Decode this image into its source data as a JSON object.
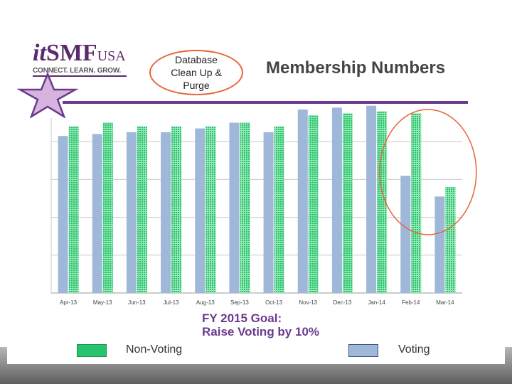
{
  "logo": {
    "brand_it": "it",
    "brand_smf": "SMF",
    "brand_usa": "USA",
    "tagline": "CONNECT. LEARN. GROW."
  },
  "callout_text": "Database\nClean Up &\nPurge",
  "slide_title": "Membership Numbers",
  "goal": {
    "line1": "FY 2015 Goal:",
    "line2": "Raise Voting by 10%"
  },
  "legend": {
    "non_voting": "Non-Voting",
    "voting": "Voting"
  },
  "colors": {
    "voting": "#9fb8d9",
    "non_voting": "#27c46d",
    "callout": "#e8643a",
    "accent_purple": "#6b3a8e"
  },
  "chart_data": {
    "type": "bar",
    "categories": [
      "Apr-13",
      "May-13",
      "Jun-13",
      "Jul-13",
      "Aug-13",
      "Sep-13",
      "Oct-13",
      "Nov-13",
      "Dec-13",
      "Jan-14",
      "Feb-14",
      "Mar-14"
    ],
    "series": [
      {
        "name": "Voting",
        "values": [
          83,
          84,
          85,
          85,
          87,
          90,
          85,
          97,
          98,
          99,
          62,
          51
        ]
      },
      {
        "name": "Non-Voting",
        "values": [
          88,
          90,
          88,
          88,
          88,
          90,
          88,
          94,
          95,
          96,
          95,
          56
        ]
      }
    ],
    "ylim": [
      0,
      100
    ],
    "grid": true,
    "y_tick_labels_shown": false,
    "annotation_highlight": [
      "Feb-14",
      "Mar-14"
    ]
  }
}
